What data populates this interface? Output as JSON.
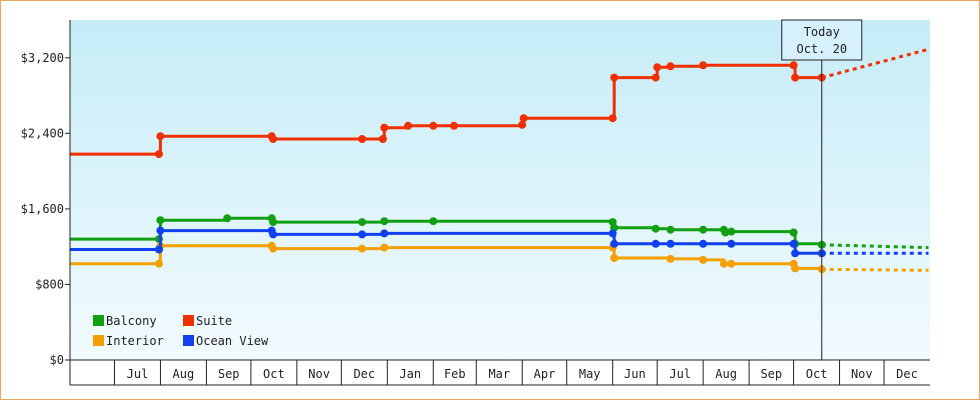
{
  "chart_data": {
    "type": "line",
    "title": "",
    "xlabel": "",
    "ylabel": "",
    "ylim": [
      0,
      3600
    ],
    "y_ticks": [
      0,
      800,
      1600,
      2400,
      3200
    ],
    "y_tick_labels": [
      "$0",
      "$800",
      "$1,600",
      "$2,400",
      "$3,200"
    ],
    "x_months": [
      "Jul",
      "Aug",
      "Sep",
      "Oct",
      "Nov",
      "Dec",
      "Jan",
      "Feb",
      "Mar",
      "Apr",
      "May",
      "Jun",
      "Jul",
      "Aug",
      "Sep",
      "Oct",
      "Nov",
      "Dec"
    ],
    "x_month_start": "Jun 2019",
    "step_line": true,
    "grid": false,
    "legend_position": "bottom-left",
    "today_marker": {
      "line1": "Today",
      "line2": "Oct. 20",
      "x": "2020-10-20"
    },
    "series": [
      {
        "name": "Balcony",
        "color": "#11a011",
        "points": [
          [
            "2019-06-01",
            1280
          ],
          [
            "2019-07-31",
            1280
          ],
          [
            "2019-08-01",
            1480
          ],
          [
            "2019-09-15",
            1500
          ],
          [
            "2019-10-15",
            1500
          ],
          [
            "2019-10-16",
            1460
          ],
          [
            "2019-12-15",
            1460
          ],
          [
            "2019-12-30",
            1470
          ],
          [
            "2020-02-01",
            1470
          ],
          [
            "2020-06-01",
            1460
          ],
          [
            "2020-06-02",
            1400
          ],
          [
            "2020-06-30",
            1390
          ],
          [
            "2020-07-10",
            1380
          ],
          [
            "2020-08-01",
            1380
          ],
          [
            "2020-08-15",
            1380
          ],
          [
            "2020-08-16",
            1350
          ],
          [
            "2020-08-20",
            1360
          ],
          [
            "2020-10-01",
            1350
          ],
          [
            "2020-10-02",
            1230
          ],
          [
            "2020-10-20",
            1220
          ]
        ],
        "forecast": [
          [
            "2020-10-20",
            1220
          ],
          [
            "2020-12-31",
            1190
          ]
        ]
      },
      {
        "name": "Interior",
        "color": "#f5a000",
        "points": [
          [
            "2019-06-01",
            1020
          ],
          [
            "2019-07-31",
            1020
          ],
          [
            "2019-08-01",
            1210
          ],
          [
            "2019-10-15",
            1210
          ],
          [
            "2019-10-16",
            1180
          ],
          [
            "2019-12-15",
            1180
          ],
          [
            "2019-12-30",
            1190
          ],
          [
            "2020-06-01",
            1190
          ],
          [
            "2020-06-02",
            1080
          ],
          [
            "2020-07-10",
            1070
          ],
          [
            "2020-08-01",
            1060
          ],
          [
            "2020-08-15",
            1020
          ],
          [
            "2020-08-20",
            1020
          ],
          [
            "2020-10-01",
            1020
          ],
          [
            "2020-10-02",
            970
          ],
          [
            "2020-10-20",
            960
          ]
        ],
        "forecast": [
          [
            "2020-10-20",
            960
          ],
          [
            "2020-12-31",
            950
          ]
        ]
      },
      {
        "name": "Ocean View",
        "color": "#1040f0",
        "points": [
          [
            "2019-06-01",
            1170
          ],
          [
            "2019-07-31",
            1170
          ],
          [
            "2019-08-01",
            1370
          ],
          [
            "2019-10-15",
            1370
          ],
          [
            "2019-10-16",
            1330
          ],
          [
            "2019-12-15",
            1330
          ],
          [
            "2019-12-30",
            1340
          ],
          [
            "2020-06-01",
            1340
          ],
          [
            "2020-06-02",
            1230
          ],
          [
            "2020-06-30",
            1230
          ],
          [
            "2020-07-10",
            1230
          ],
          [
            "2020-08-01",
            1230
          ],
          [
            "2020-08-20",
            1230
          ],
          [
            "2020-10-01",
            1230
          ],
          [
            "2020-10-02",
            1130
          ],
          [
            "2020-10-20",
            1130
          ]
        ],
        "forecast": [
          [
            "2020-10-20",
            1130
          ],
          [
            "2020-12-31",
            1130
          ]
        ]
      },
      {
        "name": "Suite",
        "color": "#f03000",
        "points": [
          [
            "2019-06-01",
            2180
          ],
          [
            "2019-07-31",
            2180
          ],
          [
            "2019-08-01",
            2370
          ],
          [
            "2019-10-15",
            2370
          ],
          [
            "2019-10-16",
            2340
          ],
          [
            "2019-12-15",
            2340
          ],
          [
            "2019-12-29",
            2340
          ],
          [
            "2019-12-30",
            2460
          ],
          [
            "2020-01-15",
            2480
          ],
          [
            "2020-02-01",
            2480
          ],
          [
            "2020-02-15",
            2480
          ],
          [
            "2020-04-01",
            2490
          ],
          [
            "2020-04-02",
            2560
          ],
          [
            "2020-06-01",
            2560
          ],
          [
            "2020-06-02",
            2990
          ],
          [
            "2020-06-30",
            2990
          ],
          [
            "2020-07-01",
            3100
          ],
          [
            "2020-07-10",
            3110
          ],
          [
            "2020-08-01",
            3120
          ],
          [
            "2020-10-01",
            3120
          ],
          [
            "2020-10-02",
            2990
          ],
          [
            "2020-10-20",
            2990
          ]
        ],
        "forecast": [
          [
            "2020-10-20",
            2990
          ],
          [
            "2020-12-31",
            3290
          ]
        ]
      }
    ],
    "legend": [
      {
        "series": "Balcony",
        "color": "#11a011"
      },
      {
        "series": "Suite",
        "color": "#f03000"
      },
      {
        "series": "Interior",
        "color": "#f5a000"
      },
      {
        "series": "Ocean View",
        "color": "#1040f0"
      }
    ]
  }
}
